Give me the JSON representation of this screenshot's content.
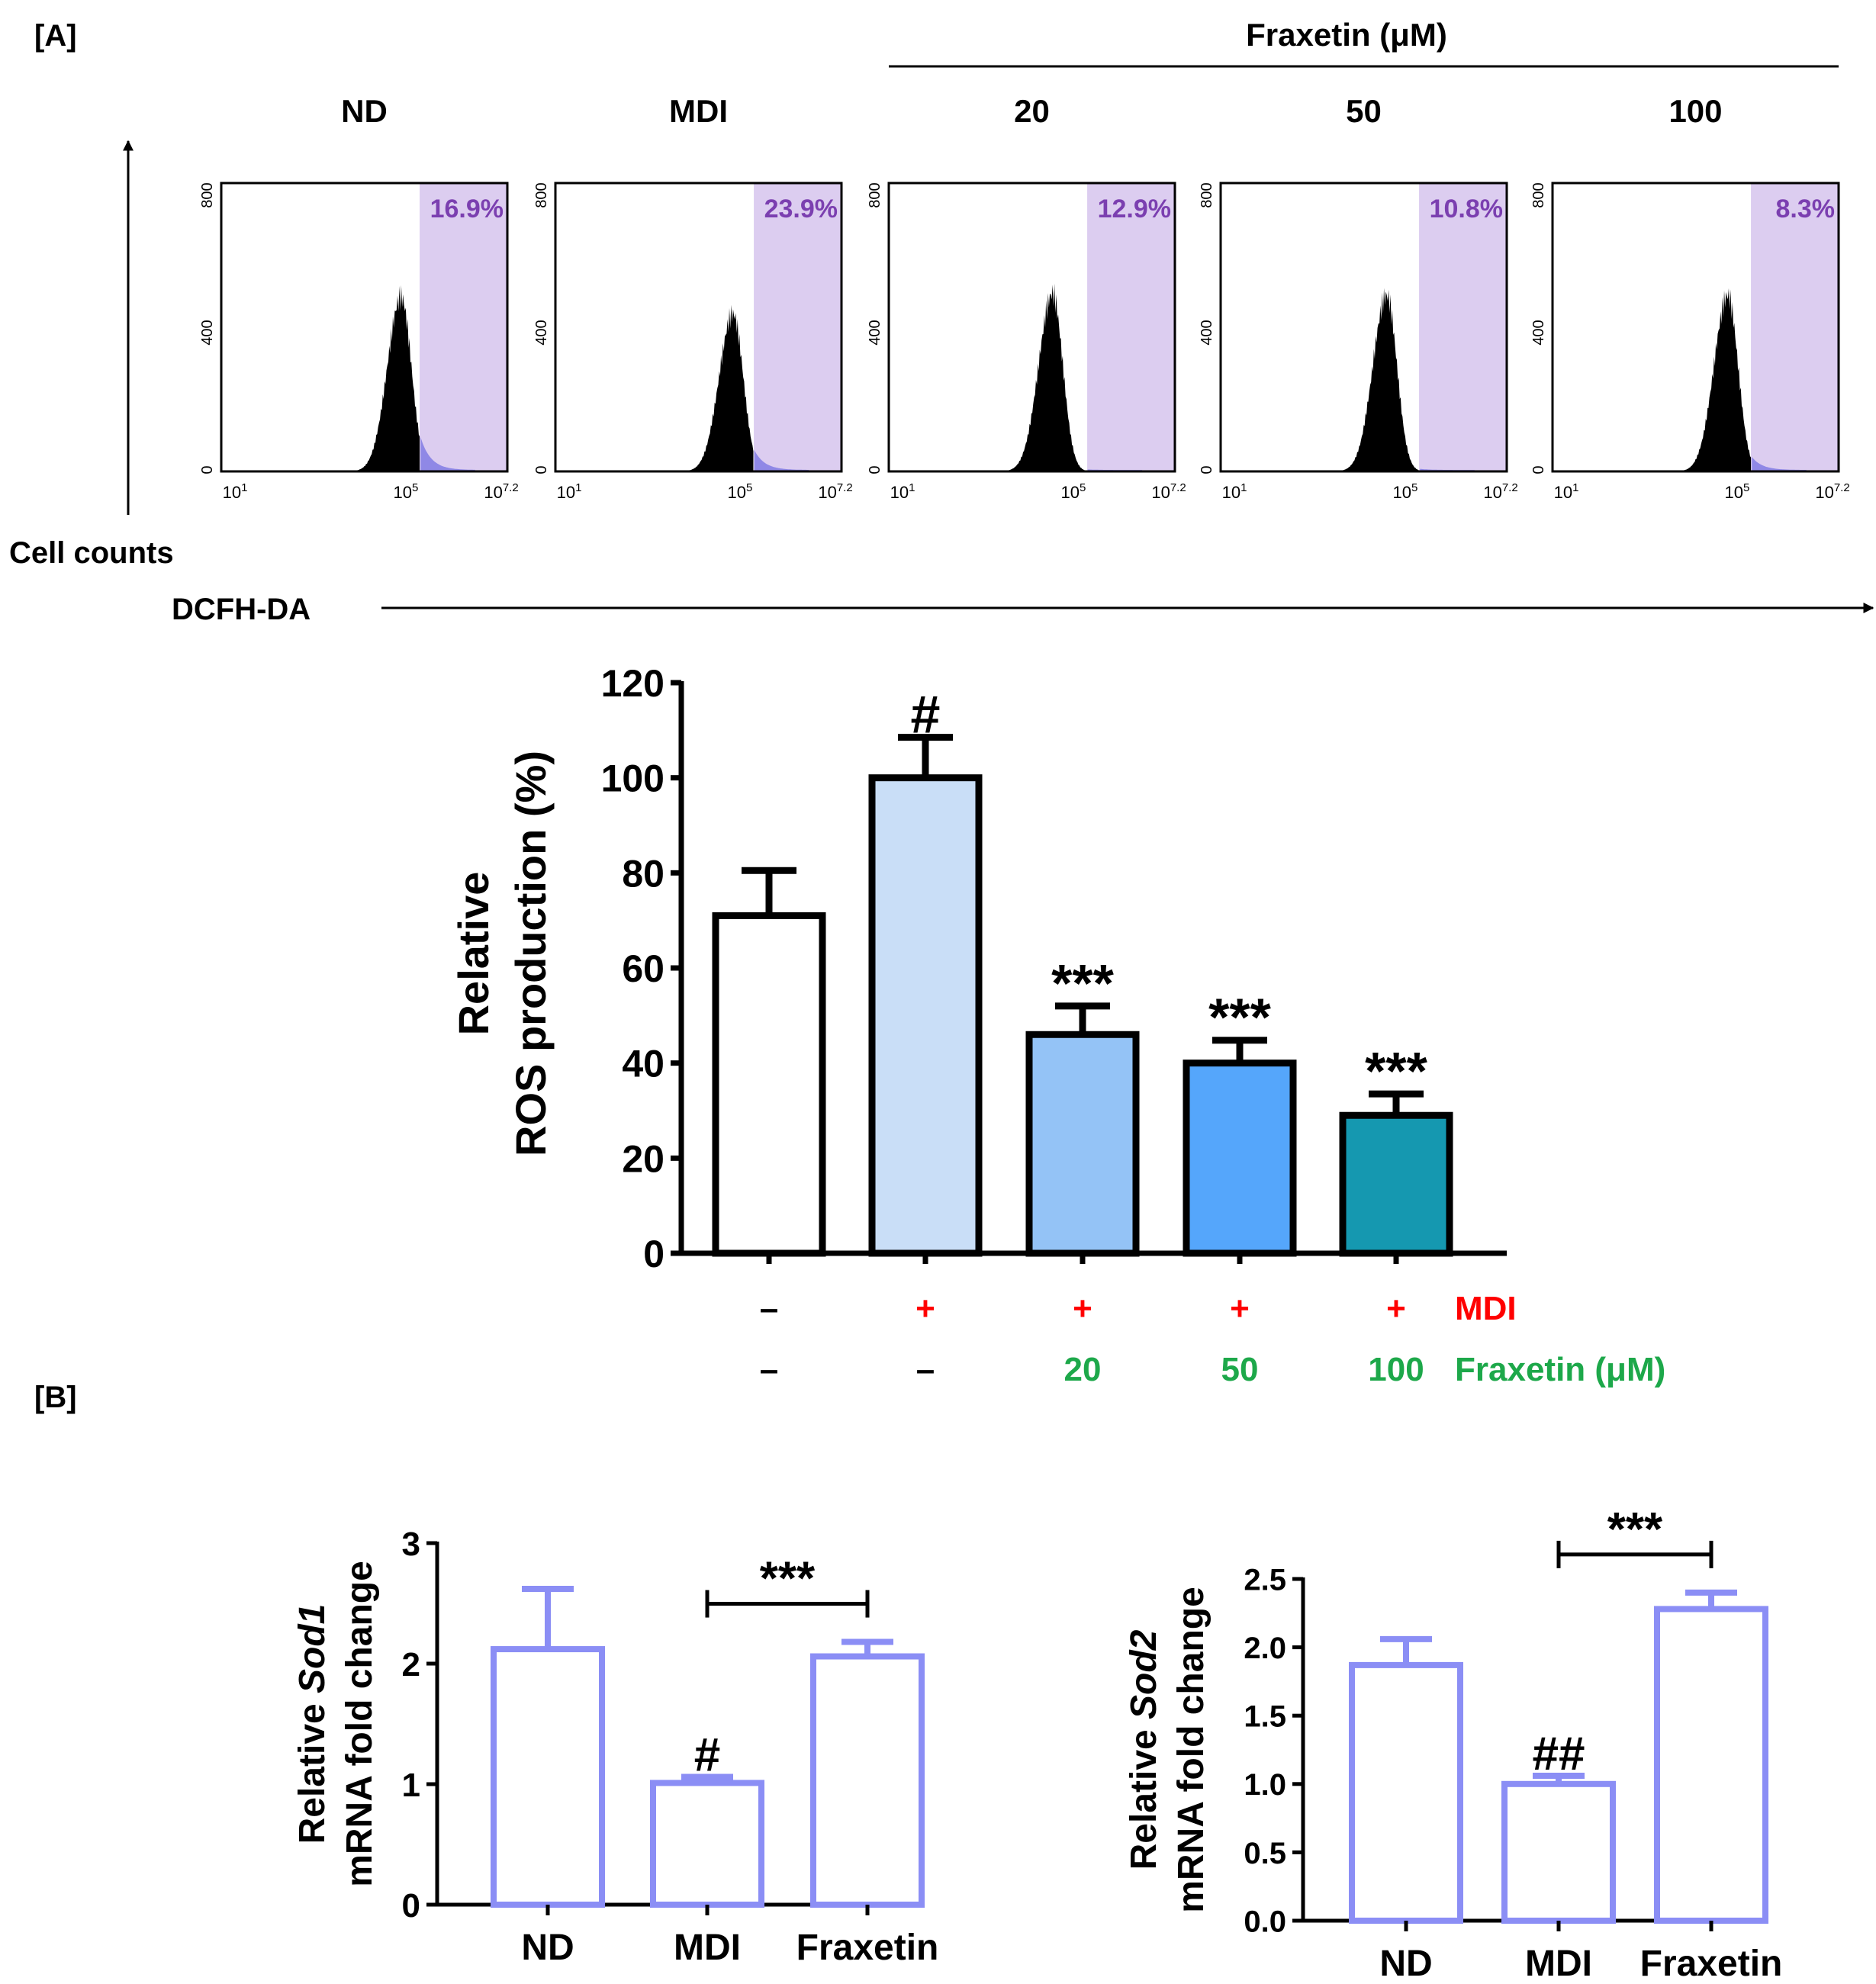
{
  "panel_a": {
    "label": "[A]",
    "treatment_header": "Fraxetin (μM)",
    "y_arrow_label": "Cell counts",
    "x_arrow_label": "DCFH-DA",
    "colors": {
      "gate_fill": "#dccdf0",
      "histogram": "#000000",
      "gate_text": "#7b3fb0",
      "tail": "#8f88e6"
    }
  },
  "panel_b": {
    "label": "[B]"
  },
  "chart_data": [
    {
      "id": "flow-histograms",
      "type": "area",
      "panels": [
        {
          "title": "ND",
          "gate_percent": "16.9%",
          "peak_log10": 4.9,
          "peak_count": 520
        },
        {
          "title": "MDI",
          "gate_percent": "23.9%",
          "peak_log10": 4.85,
          "peak_count": 470
        },
        {
          "title": "20",
          "gate_percent": "12.9%",
          "peak_log10": 4.55,
          "peak_count": 530
        },
        {
          "title": "50",
          "gate_percent": "10.8%",
          "peak_log10": 4.6,
          "peak_count": 525
        },
        {
          "title": "100",
          "gate_percent": "8.3%",
          "peak_log10": 4.8,
          "peak_count": 525
        }
      ],
      "gate_start_log10": 5.3,
      "xlim_log10": [
        1,
        7.2
      ],
      "ylim": [
        0,
        800
      ],
      "x_tick_bases": [
        "10",
        "10",
        "10"
      ],
      "x_tick_exponents": [
        "1",
        "5",
        "7.2"
      ],
      "y_ticks": [
        "0",
        "400",
        "800"
      ]
    },
    {
      "id": "ros-bar",
      "type": "bar",
      "categories": [
        "ND",
        "MDI",
        "Fraxetin 20",
        "Fraxetin 50",
        "Fraxetin 100"
      ],
      "values": [
        71,
        100,
        46,
        40,
        29
      ],
      "errors": [
        9.5,
        8.5,
        6,
        4.8,
        4.5
      ],
      "colors": [
        "#ffffff",
        "#c9def7",
        "#94c3f6",
        "#55a6fb",
        "#1598b0"
      ],
      "annotations": [
        "",
        "#",
        "***",
        "***",
        "***"
      ],
      "ylabel_lines": [
        "Relative",
        "ROS production  (%)"
      ],
      "ylim": [
        0,
        120
      ],
      "y_ticks": [
        "0",
        "20",
        "40",
        "60",
        "80",
        "100",
        "120"
      ],
      "mdi_row": {
        "label": "MDI",
        "values": [
          "–",
          "+",
          "+",
          "+",
          "+"
        ],
        "color": "#ff0000"
      },
      "fraxetin_row": {
        "label": "Fraxetin (μM)",
        "values": [
          "–",
          "–",
          "20",
          "50",
          "100"
        ],
        "color": "#1da84a"
      }
    },
    {
      "id": "sod1-bar",
      "type": "bar",
      "categories": [
        "ND",
        "MDI",
        "Fraxetin"
      ],
      "values": [
        2.12,
        1.01,
        2.06
      ],
      "errors": [
        0.5,
        0.05,
        0.12
      ],
      "bar_color": "#8b8ef5",
      "annotations": [
        "",
        "#",
        ""
      ],
      "bracket": {
        "from": 1,
        "to": 2,
        "label": "***"
      },
      "ylabel_pre": "Relative ",
      "ylabel_gene": "Sod1",
      "ylabel_line2": "mRNA fold change",
      "ylim": [
        0,
        3
      ],
      "y_ticks": [
        "0",
        "1",
        "2",
        "3"
      ]
    },
    {
      "id": "sod2-bar",
      "type": "bar",
      "categories": [
        "ND",
        "MDI",
        "Fraxetin"
      ],
      "values": [
        1.87,
        1.0,
        2.28
      ],
      "errors": [
        0.19,
        0.06,
        0.12
      ],
      "bar_color": "#8b8ef5",
      "annotations": [
        "",
        "##",
        ""
      ],
      "bracket": {
        "from": 1,
        "to": 2,
        "label": "***"
      },
      "ylabel_pre": "Relative ",
      "ylabel_gene": "Sod2",
      "ylabel_line2": "mRNA fold change",
      "ylim": [
        0,
        2.5
      ],
      "y_ticks": [
        "0.0",
        "0.5",
        "1.0",
        "1.5",
        "2.0",
        "2.5"
      ]
    }
  ]
}
